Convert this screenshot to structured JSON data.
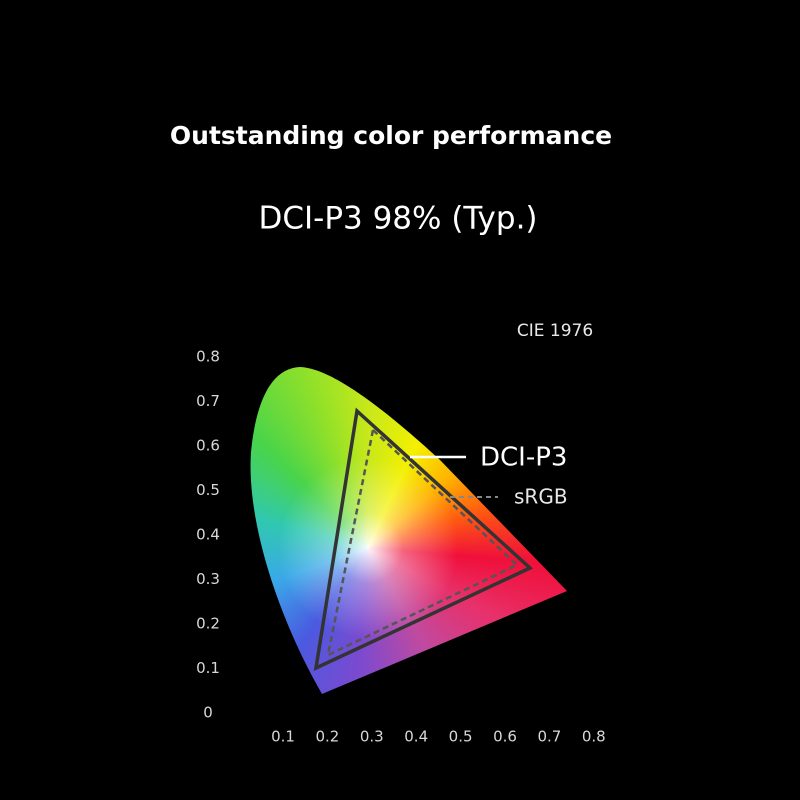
{
  "header": {
    "title": "Outstanding color performance",
    "subtitle": "DCI-P3 98% (Typ.)"
  },
  "diagram": {
    "label": "CIE 1976",
    "yticks": [
      0.8,
      0.7,
      0.6,
      0.5,
      0.4,
      0.3,
      0.2,
      0.1,
      0
    ],
    "xticks": [
      0.1,
      0.2,
      0.3,
      0.4,
      0.5,
      0.6,
      0.7,
      0.8
    ],
    "legend": [
      "DCI-P3",
      "sRGB"
    ]
  }
}
